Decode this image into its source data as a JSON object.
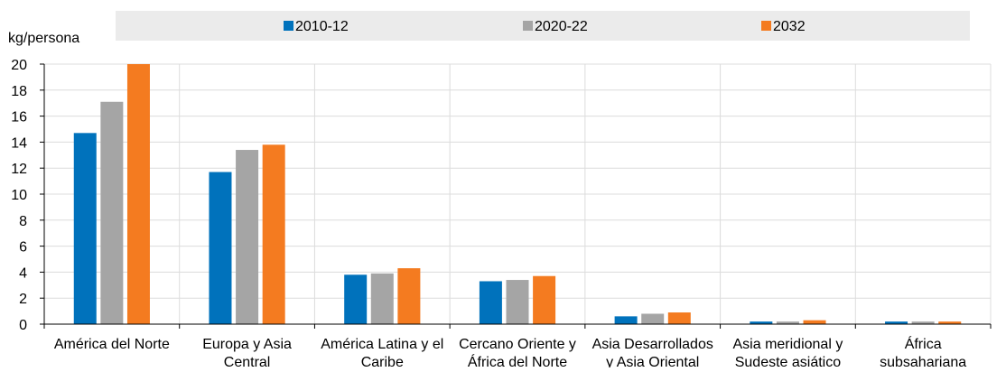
{
  "chart_data": {
    "type": "bar",
    "ylabel": "kg/persona",
    "ylim": [
      0,
      20
    ],
    "yticks": [
      0,
      2,
      4,
      6,
      8,
      10,
      12,
      14,
      16,
      18,
      20
    ],
    "grid": true,
    "legend_position": "top",
    "categories": [
      [
        "América del Norte"
      ],
      [
        "Europa y Asia",
        "Central"
      ],
      [
        "América Latina y el",
        "Caribe"
      ],
      [
        "Cercano Oriente y",
        "África del Norte"
      ],
      [
        "Asia Desarrollados",
        "y Asia Oriental"
      ],
      [
        "Asia meridional y",
        "Sudeste asiático"
      ],
      [
        "África",
        "subsahariana"
      ]
    ],
    "series": [
      {
        "name": "2010-12",
        "color": "#0072BC",
        "values": [
          14.7,
          11.7,
          3.8,
          3.3,
          0.6,
          0.2,
          0.2
        ]
      },
      {
        "name": "2020-22",
        "color": "#A5A5A5",
        "values": [
          17.1,
          13.4,
          3.9,
          3.4,
          0.8,
          0.2,
          0.2
        ]
      },
      {
        "name": "2032",
        "color": "#F47B20",
        "values": [
          20.0,
          13.8,
          4.3,
          3.7,
          0.9,
          0.3,
          0.2
        ]
      }
    ]
  }
}
